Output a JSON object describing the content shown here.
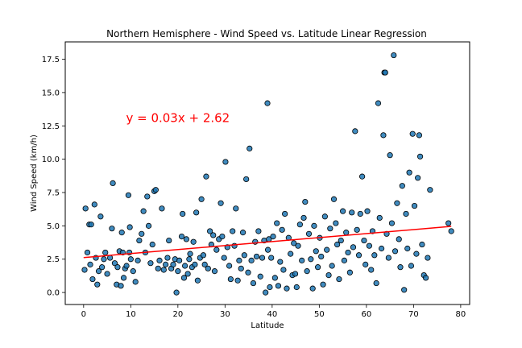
{
  "chart_data": {
    "type": "scatter",
    "title": "Northern Hemisphere - Wind Speed vs. Latitude Linear Regression",
    "xlabel": "Latitude",
    "ylabel": "Wind Speed (km/h)",
    "xlim": [
      -3.9,
      81.9
    ],
    "ylim": [
      -0.9,
      18.8
    ],
    "xticks": [
      0,
      10,
      20,
      30,
      40,
      50,
      60,
      70,
      80
    ],
    "yticks": [
      0.0,
      2.5,
      5.0,
      7.5,
      10.0,
      12.5,
      15.0,
      17.5
    ],
    "yticklabels": [
      "0.0",
      "2.5",
      "5.0",
      "7.5",
      "10.0",
      "12.5",
      "15.0",
      "17.5"
    ],
    "grid": false,
    "legend": "none",
    "annotation": {
      "text": "y = 0.03x + 2.62",
      "x": 9,
      "y": 13.1,
      "color": "#ff0000"
    },
    "regression": {
      "slope": 0.03,
      "intercept": 2.62,
      "x_range": [
        0.0,
        78.0
      ],
      "color": "#ff0000"
    },
    "series": [
      {
        "marker_color": "#1f77b4",
        "edge_color": "#000000",
        "points": [
          [
            0.2,
            1.7
          ],
          [
            0.4,
            6.3
          ],
          [
            0.8,
            3.0
          ],
          [
            1.2,
            5.1
          ],
          [
            1.4,
            2.1
          ],
          [
            1.6,
            5.1
          ],
          [
            1.9,
            1.0
          ],
          [
            2.3,
            6.6
          ],
          [
            2.6,
            2.6
          ],
          [
            2.9,
            0.6
          ],
          [
            3.2,
            1.6
          ],
          [
            3.6,
            5.7
          ],
          [
            3.9,
            1.9
          ],
          [
            4.3,
            2.5
          ],
          [
            4.6,
            3.0
          ],
          [
            5.0,
            1.4
          ],
          [
            5.6,
            2.6
          ],
          [
            6.0,
            4.8
          ],
          [
            6.2,
            8.2
          ],
          [
            6.6,
            2.2
          ],
          [
            7.0,
            0.6
          ],
          [
            7.2,
            1.9
          ],
          [
            7.6,
            3.1
          ],
          [
            7.9,
            0.5
          ],
          [
            8.1,
            4.5
          ],
          [
            8.3,
            3.0
          ],
          [
            8.5,
            1.1
          ],
          [
            8.8,
            1.8
          ],
          [
            9.1,
            2.0
          ],
          [
            9.5,
            7.3
          ],
          [
            9.7,
            3.0
          ],
          [
            9.8,
            4.9
          ],
          [
            10.0,
            2.5
          ],
          [
            10.5,
            1.6
          ],
          [
            11.0,
            0.8
          ],
          [
            11.5,
            2.4
          ],
          [
            11.8,
            3.9
          ],
          [
            12.3,
            4.4
          ],
          [
            12.7,
            6.1
          ],
          [
            13.1,
            3.0
          ],
          [
            13.5,
            7.2
          ],
          [
            13.8,
            5.0
          ],
          [
            14.2,
            2.2
          ],
          [
            14.6,
            3.6
          ],
          [
            15.0,
            7.6
          ],
          [
            15.3,
            7.7
          ],
          [
            15.8,
            1.8
          ],
          [
            16.1,
            2.4
          ],
          [
            16.6,
            6.3
          ],
          [
            17.0,
            1.7
          ],
          [
            17.4,
            2.1
          ],
          [
            17.8,
            2.6
          ],
          [
            18.1,
            3.9
          ],
          [
            18.6,
            1.8
          ],
          [
            19.0,
            2.1
          ],
          [
            19.4,
            2.5
          ],
          [
            19.7,
            0.0
          ],
          [
            20.0,
            1.6
          ],
          [
            20.3,
            2.4
          ],
          [
            20.8,
            4.2
          ],
          [
            21.0,
            5.9
          ],
          [
            21.3,
            1.1
          ],
          [
            21.5,
            2.0
          ],
          [
            21.8,
            4.0
          ],
          [
            22.1,
            1.4
          ],
          [
            22.4,
            2.5
          ],
          [
            22.6,
            2.9
          ],
          [
            23.0,
            1.9
          ],
          [
            23.3,
            3.8
          ],
          [
            23.6,
            2.1
          ],
          [
            23.9,
            6.0
          ],
          [
            24.2,
            0.9
          ],
          [
            24.7,
            2.6
          ],
          [
            25.0,
            7.0
          ],
          [
            25.4,
            2.8
          ],
          [
            25.7,
            2.1
          ],
          [
            26.0,
            8.7
          ],
          [
            26.4,
            1.8
          ],
          [
            26.8,
            4.6
          ],
          [
            27.1,
            3.6
          ],
          [
            27.5,
            4.3
          ],
          [
            27.8,
            1.6
          ],
          [
            28.2,
            3.2
          ],
          [
            28.7,
            4.0
          ],
          [
            29.1,
            6.7
          ],
          [
            29.4,
            4.2
          ],
          [
            29.8,
            2.6
          ],
          [
            30.1,
            9.8
          ],
          [
            30.5,
            3.4
          ],
          [
            30.9,
            2.0
          ],
          [
            31.2,
            1.0
          ],
          [
            31.6,
            4.6
          ],
          [
            32.0,
            3.5
          ],
          [
            32.3,
            6.3
          ],
          [
            32.7,
            0.9
          ],
          [
            33.0,
            2.4
          ],
          [
            33.4,
            1.8
          ],
          [
            33.8,
            4.5
          ],
          [
            34.1,
            2.8
          ],
          [
            34.5,
            8.5
          ],
          [
            34.9,
            1.5
          ],
          [
            35.2,
            10.8
          ],
          [
            35.6,
            2.4
          ],
          [
            36.0,
            0.7
          ],
          [
            36.4,
            3.8
          ],
          [
            36.7,
            2.7
          ],
          [
            37.1,
            4.6
          ],
          [
            37.5,
            1.2
          ],
          [
            37.9,
            2.6
          ],
          [
            38.3,
            3.9
          ],
          [
            38.6,
            0.0
          ],
          [
            39.0,
            14.2
          ],
          [
            39.1,
            3.2
          ],
          [
            39.3,
            4.0
          ],
          [
            39.5,
            0.4
          ],
          [
            39.8,
            2.6
          ],
          [
            40.2,
            4.2
          ],
          [
            40.6,
            1.1
          ],
          [
            41.0,
            5.2
          ],
          [
            41.3,
            0.5
          ],
          [
            41.7,
            2.3
          ],
          [
            42.1,
            4.7
          ],
          [
            42.4,
            1.7
          ],
          [
            42.7,
            5.9
          ],
          [
            43.1,
            0.3
          ],
          [
            43.5,
            4.1
          ],
          [
            43.9,
            2.9
          ],
          [
            44.3,
            1.3
          ],
          [
            44.6,
            3.7
          ],
          [
            44.9,
            1.4
          ],
          [
            45.2,
            0.4
          ],
          [
            45.5,
            3.5
          ],
          [
            45.9,
            5.1
          ],
          [
            46.3,
            2.4
          ],
          [
            46.7,
            5.6
          ],
          [
            47.0,
            6.8
          ],
          [
            47.4,
            1.6
          ],
          [
            47.8,
            4.4
          ],
          [
            48.2,
            2.5
          ],
          [
            48.6,
            0.3
          ],
          [
            48.9,
            5.0
          ],
          [
            49.3,
            3.1
          ],
          [
            49.7,
            1.9
          ],
          [
            50.1,
            4.1
          ],
          [
            50.4,
            2.7
          ],
          [
            50.8,
            0.6
          ],
          [
            51.2,
            5.7
          ],
          [
            51.6,
            3.2
          ],
          [
            52.0,
            1.3
          ],
          [
            52.3,
            4.8
          ],
          [
            52.7,
            2.0
          ],
          [
            53.1,
            7.0
          ],
          [
            53.5,
            5.2
          ],
          [
            53.8,
            3.6
          ],
          [
            54.2,
            1.0
          ],
          [
            54.6,
            3.9
          ],
          [
            55.0,
            6.1
          ],
          [
            55.3,
            2.4
          ],
          [
            55.7,
            4.5
          ],
          [
            56.1,
            3.0
          ],
          [
            56.5,
            1.5
          ],
          [
            56.9,
            6.0
          ],
          [
            57.2,
            3.4
          ],
          [
            57.6,
            12.1
          ],
          [
            58.0,
            4.7
          ],
          [
            58.4,
            2.8
          ],
          [
            58.7,
            5.9
          ],
          [
            59.1,
            8.7
          ],
          [
            59.5,
            3.9
          ],
          [
            59.8,
            2.1
          ],
          [
            60.2,
            6.1
          ],
          [
            60.6,
            3.5
          ],
          [
            61.0,
            1.7
          ],
          [
            61.3,
            4.6
          ],
          [
            61.7,
            2.8
          ],
          [
            62.1,
            0.7
          ],
          [
            62.5,
            14.2
          ],
          [
            62.8,
            5.6
          ],
          [
            63.2,
            3.3
          ],
          [
            63.6,
            11.8
          ],
          [
            63.8,
            16.5
          ],
          [
            64.0,
            16.5
          ],
          [
            64.3,
            4.4
          ],
          [
            64.7,
            2.6
          ],
          [
            65.0,
            10.3
          ],
          [
            65.4,
            5.2
          ],
          [
            65.8,
            17.8
          ],
          [
            66.1,
            3.1
          ],
          [
            66.5,
            6.7
          ],
          [
            66.9,
            4.0
          ],
          [
            67.2,
            1.9
          ],
          [
            67.6,
            8.0
          ],
          [
            68.0,
            0.2
          ],
          [
            68.4,
            5.9
          ],
          [
            68.7,
            3.3
          ],
          [
            69.1,
            9.0
          ],
          [
            69.5,
            2.0
          ],
          [
            69.8,
            11.9
          ],
          [
            70.2,
            6.5
          ],
          [
            70.6,
            2.9
          ],
          [
            70.9,
            8.6
          ],
          [
            71.2,
            11.8
          ],
          [
            71.4,
            10.2
          ],
          [
            71.8,
            3.6
          ],
          [
            72.2,
            1.3
          ],
          [
            72.6,
            1.1
          ],
          [
            73.0,
            2.6
          ],
          [
            73.5,
            7.7
          ],
          [
            77.4,
            5.2
          ],
          [
            78.0,
            4.6
          ]
        ]
      }
    ]
  }
}
